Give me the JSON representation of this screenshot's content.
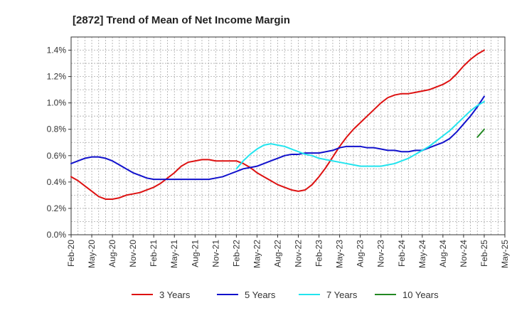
{
  "chart_data": {
    "type": "line",
    "title": "[2872]  Trend of Mean of Net Income Margin",
    "xlabel": "",
    "ylabel": "",
    "x_tick_labels": [
      "Feb-20",
      "May-20",
      "Aug-20",
      "Nov-20",
      "Feb-21",
      "May-21",
      "Aug-21",
      "Nov-21",
      "Feb-22",
      "May-22",
      "Aug-22",
      "Nov-22",
      "Feb-23",
      "May-23",
      "Aug-23",
      "Nov-23",
      "Feb-24",
      "May-24",
      "Aug-24",
      "Nov-24",
      "Feb-25",
      "May-25"
    ],
    "y_ticks": [
      0.0,
      0.2,
      0.4,
      0.6,
      0.8,
      1.0,
      1.2,
      1.4
    ],
    "y_tick_labels": [
      "0.0%",
      "0.2%",
      "0.4%",
      "0.6%",
      "0.8%",
      "1.0%",
      "1.2%",
      "1.4%"
    ],
    "ylim": [
      0.0,
      1.5
    ],
    "grid": true,
    "legend_position": "bottom",
    "series": [
      {
        "name": "3 Years",
        "color": "#dd1111",
        "points": [
          [
            "Feb-20",
            0.44
          ],
          [
            "Mar-20",
            0.41
          ],
          [
            "Apr-20",
            0.37
          ],
          [
            "May-20",
            0.33
          ],
          [
            "Jun-20",
            0.29
          ],
          [
            "Jul-20",
            0.27
          ],
          [
            "Aug-20",
            0.27
          ],
          [
            "Sep-20",
            0.28
          ],
          [
            "Oct-20",
            0.3
          ],
          [
            "Nov-20",
            0.31
          ],
          [
            "Dec-20",
            0.32
          ],
          [
            "Jan-21",
            0.34
          ],
          [
            "Feb-21",
            0.36
          ],
          [
            "Mar-21",
            0.39
          ],
          [
            "Apr-21",
            0.43
          ],
          [
            "May-21",
            0.47
          ],
          [
            "Jun-21",
            0.52
          ],
          [
            "Jul-21",
            0.55
          ],
          [
            "Aug-21",
            0.56
          ],
          [
            "Sep-21",
            0.57
          ],
          [
            "Oct-21",
            0.57
          ],
          [
            "Nov-21",
            0.56
          ],
          [
            "Dec-21",
            0.56
          ],
          [
            "Jan-22",
            0.56
          ],
          [
            "Feb-22",
            0.56
          ],
          [
            "Mar-22",
            0.54
          ],
          [
            "Apr-22",
            0.51
          ],
          [
            "May-22",
            0.47
          ],
          [
            "Jun-22",
            0.44
          ],
          [
            "Jul-22",
            0.41
          ],
          [
            "Aug-22",
            0.38
          ],
          [
            "Sep-22",
            0.36
          ],
          [
            "Oct-22",
            0.34
          ],
          [
            "Nov-22",
            0.33
          ],
          [
            "Dec-22",
            0.34
          ],
          [
            "Jan-23",
            0.38
          ],
          [
            "Feb-23",
            0.44
          ],
          [
            "Mar-23",
            0.51
          ],
          [
            "Apr-23",
            0.59
          ],
          [
            "May-23",
            0.67
          ],
          [
            "Jun-23",
            0.74
          ],
          [
            "Jul-23",
            0.8
          ],
          [
            "Aug-23",
            0.85
          ],
          [
            "Sep-23",
            0.9
          ],
          [
            "Oct-23",
            0.95
          ],
          [
            "Nov-23",
            1.0
          ],
          [
            "Dec-23",
            1.04
          ],
          [
            "Jan-24",
            1.06
          ],
          [
            "Feb-24",
            1.07
          ],
          [
            "Mar-24",
            1.07
          ],
          [
            "Apr-24",
            1.08
          ],
          [
            "May-24",
            1.09
          ],
          [
            "Jun-24",
            1.1
          ],
          [
            "Jul-24",
            1.12
          ],
          [
            "Aug-24",
            1.14
          ],
          [
            "Sep-24",
            1.17
          ],
          [
            "Oct-24",
            1.22
          ],
          [
            "Nov-24",
            1.28
          ],
          [
            "Dec-24",
            1.33
          ],
          [
            "Jan-25",
            1.37
          ],
          [
            "Feb-25",
            1.4
          ]
        ]
      },
      {
        "name": "5 Years",
        "color": "#1111cc",
        "points": [
          [
            "Feb-20",
            0.54
          ],
          [
            "Mar-20",
            0.56
          ],
          [
            "Apr-20",
            0.58
          ],
          [
            "May-20",
            0.59
          ],
          [
            "Jun-20",
            0.59
          ],
          [
            "Jul-20",
            0.58
          ],
          [
            "Aug-20",
            0.56
          ],
          [
            "Sep-20",
            0.53
          ],
          [
            "Oct-20",
            0.5
          ],
          [
            "Nov-20",
            0.47
          ],
          [
            "Dec-20",
            0.45
          ],
          [
            "Jan-21",
            0.43
          ],
          [
            "Feb-21",
            0.42
          ],
          [
            "Mar-21",
            0.42
          ],
          [
            "Apr-21",
            0.42
          ],
          [
            "May-21",
            0.42
          ],
          [
            "Jun-21",
            0.42
          ],
          [
            "Jul-21",
            0.42
          ],
          [
            "Aug-21",
            0.42
          ],
          [
            "Sep-21",
            0.42
          ],
          [
            "Oct-21",
            0.42
          ],
          [
            "Nov-21",
            0.43
          ],
          [
            "Dec-21",
            0.44
          ],
          [
            "Jan-22",
            0.46
          ],
          [
            "Feb-22",
            0.48
          ],
          [
            "Mar-22",
            0.5
          ],
          [
            "Apr-22",
            0.51
          ],
          [
            "May-22",
            0.52
          ],
          [
            "Jun-22",
            0.54
          ],
          [
            "Jul-22",
            0.56
          ],
          [
            "Aug-22",
            0.58
          ],
          [
            "Sep-22",
            0.6
          ],
          [
            "Oct-22",
            0.61
          ],
          [
            "Nov-22",
            0.61
          ],
          [
            "Dec-22",
            0.62
          ],
          [
            "Jan-23",
            0.62
          ],
          [
            "Feb-23",
            0.62
          ],
          [
            "Mar-23",
            0.63
          ],
          [
            "Apr-23",
            0.64
          ],
          [
            "May-23",
            0.66
          ],
          [
            "Jun-23",
            0.67
          ],
          [
            "Jul-23",
            0.67
          ],
          [
            "Aug-23",
            0.67
          ],
          [
            "Sep-23",
            0.66
          ],
          [
            "Oct-23",
            0.66
          ],
          [
            "Nov-23",
            0.65
          ],
          [
            "Dec-23",
            0.64
          ],
          [
            "Jan-24",
            0.64
          ],
          [
            "Feb-24",
            0.63
          ],
          [
            "Mar-24",
            0.63
          ],
          [
            "Apr-24",
            0.64
          ],
          [
            "May-24",
            0.64
          ],
          [
            "Jun-24",
            0.66
          ],
          [
            "Jul-24",
            0.68
          ],
          [
            "Aug-24",
            0.7
          ],
          [
            "Sep-24",
            0.73
          ],
          [
            "Oct-24",
            0.78
          ],
          [
            "Nov-24",
            0.84
          ],
          [
            "Dec-24",
            0.9
          ],
          [
            "Jan-25",
            0.97
          ],
          [
            "Feb-25",
            1.05
          ]
        ]
      },
      {
        "name": "7 Years",
        "color": "#22e4ee",
        "points": [
          [
            "Feb-22",
            0.5
          ],
          [
            "Mar-22",
            0.56
          ],
          [
            "Apr-22",
            0.61
          ],
          [
            "May-22",
            0.65
          ],
          [
            "Jun-22",
            0.68
          ],
          [
            "Jul-22",
            0.69
          ],
          [
            "Aug-22",
            0.68
          ],
          [
            "Sep-22",
            0.67
          ],
          [
            "Oct-22",
            0.65
          ],
          [
            "Nov-22",
            0.63
          ],
          [
            "Dec-22",
            0.61
          ],
          [
            "Jan-23",
            0.6
          ],
          [
            "Feb-23",
            0.58
          ],
          [
            "Mar-23",
            0.57
          ],
          [
            "Apr-23",
            0.56
          ],
          [
            "May-23",
            0.55
          ],
          [
            "Jun-23",
            0.54
          ],
          [
            "Jul-23",
            0.53
          ],
          [
            "Aug-23",
            0.52
          ],
          [
            "Sep-23",
            0.52
          ],
          [
            "Oct-23",
            0.52
          ],
          [
            "Nov-23",
            0.52
          ],
          [
            "Dec-23",
            0.53
          ],
          [
            "Jan-24",
            0.54
          ],
          [
            "Feb-24",
            0.56
          ],
          [
            "Mar-24",
            0.58
          ],
          [
            "Apr-24",
            0.61
          ],
          [
            "May-24",
            0.64
          ],
          [
            "Jun-24",
            0.67
          ],
          [
            "Jul-24",
            0.71
          ],
          [
            "Aug-24",
            0.75
          ],
          [
            "Sep-24",
            0.79
          ],
          [
            "Oct-24",
            0.84
          ],
          [
            "Nov-24",
            0.89
          ],
          [
            "Dec-24",
            0.94
          ],
          [
            "Jan-25",
            0.98
          ],
          [
            "Feb-25",
            1.01
          ]
        ]
      },
      {
        "name": "10 Years",
        "color": "#228822",
        "points": [
          [
            "Jan-25",
            0.74
          ],
          [
            "Feb-25",
            0.8
          ]
        ]
      }
    ]
  }
}
